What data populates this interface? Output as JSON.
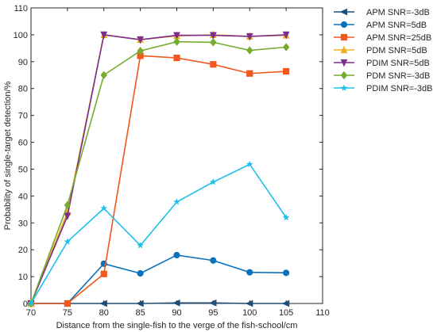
{
  "chart_data": {
    "type": "line",
    "title": "",
    "xlabel": "Distance from the single-fish to the verge of the fish-school/cm",
    "ylabel": "Probability of single-target detection/%",
    "xlim": [
      70,
      110
    ],
    "ylim": [
      0,
      110
    ],
    "xticks": [
      70,
      75,
      80,
      85,
      90,
      95,
      100,
      105,
      110
    ],
    "yticks": [
      0,
      10,
      20,
      30,
      40,
      50,
      60,
      70,
      80,
      90,
      100,
      110
    ],
    "x": [
      70,
      75,
      80,
      85,
      90,
      95,
      100,
      105
    ],
    "grid": false,
    "legend_position": "top-right outside",
    "series": [
      {
        "name": "APM SNR=-3dB",
        "color": "#1f4e79",
        "marker": "triangle-left",
        "values": [
          0,
          0,
          0,
          0,
          0.2,
          0.2,
          0,
          0
        ]
      },
      {
        "name": "APM SNR=5dB",
        "color": "#0a72bd",
        "marker": "circle",
        "values": [
          0,
          0,
          14.8,
          11.2,
          18,
          16,
          11.6,
          11.4
        ]
      },
      {
        "name": "APM SNR=25dB",
        "color": "#f2571b",
        "marker": "square",
        "values": [
          0,
          0,
          11,
          92.2,
          91.4,
          89,
          85.6,
          86.4
        ]
      },
      {
        "name": "PDM SNR=5dB",
        "color": "#efb01e",
        "marker": "triangle-up",
        "values": [
          0,
          34,
          100,
          98.2,
          99.6,
          100,
          99.4,
          99.8
        ]
      },
      {
        "name": "PDIM SNR=5dB",
        "color": "#7b2e8e",
        "marker": "triangle-down",
        "values": [
          0,
          32.6,
          100,
          98.2,
          99.8,
          99.8,
          99.4,
          100
        ]
      },
      {
        "name": "PDM SNR=-3dB",
        "color": "#76ac2f",
        "marker": "diamond",
        "values": [
          0,
          36.6,
          85,
          94,
          97.4,
          97.2,
          94.2,
          95.4
        ]
      },
      {
        "name": "PDIM SNR=-3dB",
        "color": "#1ec0ea",
        "marker": "star",
        "values": [
          0,
          23,
          35.4,
          21.6,
          37.8,
          45.2,
          51.8,
          32
        ]
      }
    ]
  }
}
